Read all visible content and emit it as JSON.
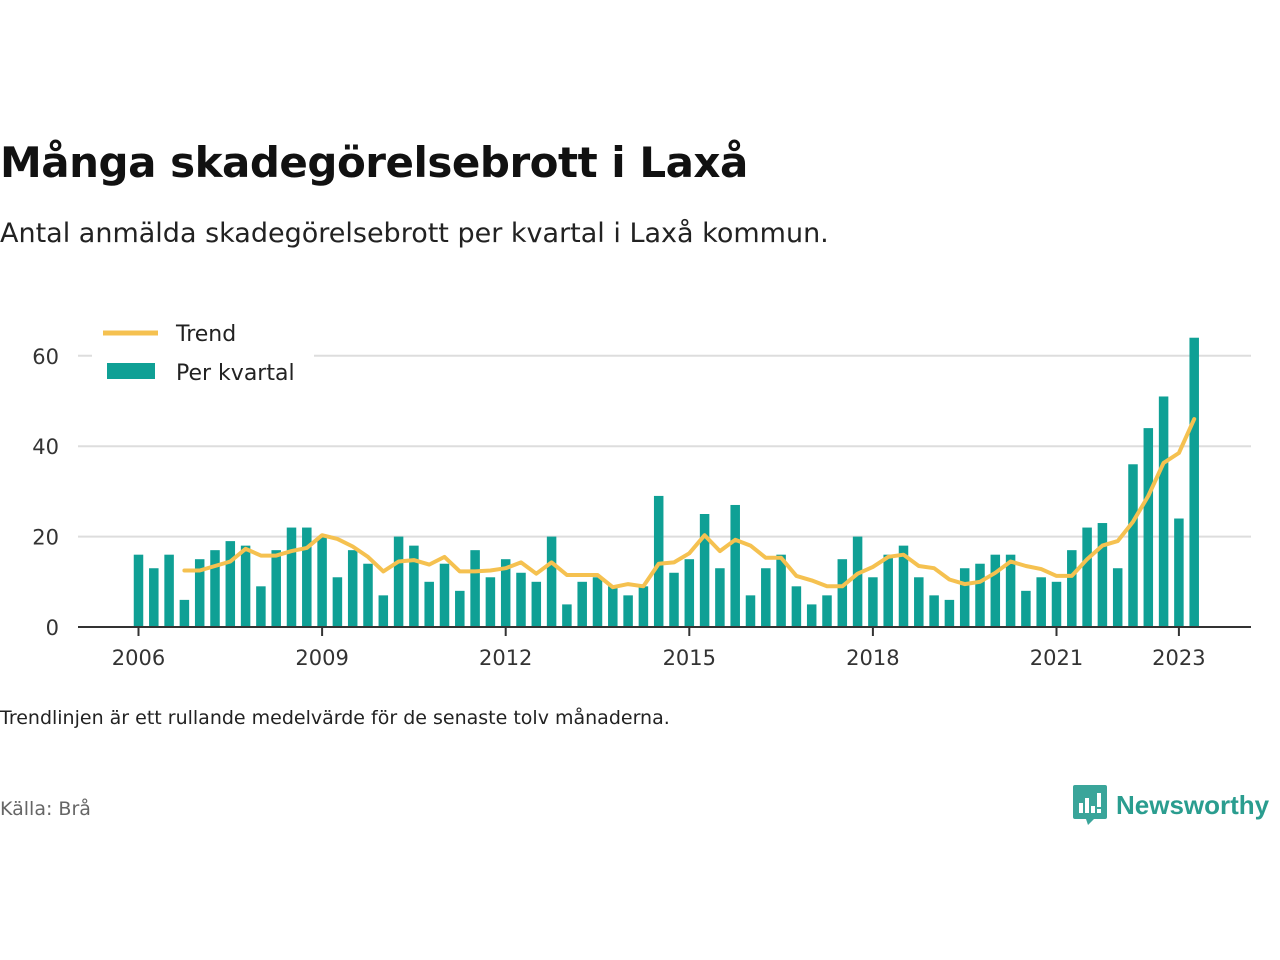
{
  "title": "Många skadegörelsebrott i Laxå",
  "subtitle": "Antal anmälda skadegörelsebrott per kvartal i Laxå kommun.",
  "note": "Trendlinjen är ett rullande medelvärde för de senaste tolv månaderna.",
  "source": "Källa: Brå",
  "brand": {
    "name": "Newsworthy",
    "icon": "newsworthy-logo-icon"
  },
  "colors": {
    "bars": "#0fa095",
    "trend": "#f5c150",
    "grid": "#dddddd",
    "axis": "#333333"
  },
  "chart_data": {
    "type": "bar",
    "xlabel": "",
    "ylabel": "",
    "ylim": [
      0,
      70
    ],
    "yticks": [
      0,
      20,
      40,
      60
    ],
    "xticks": [
      "2006",
      "2009",
      "2012",
      "2015",
      "2018",
      "2021",
      "2023"
    ],
    "legend": {
      "position": "top-left",
      "entries": [
        "Trend",
        "Per kvartal"
      ]
    },
    "grid": true,
    "categories": [
      "2006 Q1",
      "2006 Q2",
      "2006 Q3",
      "2006 Q4",
      "2007 Q1",
      "2007 Q2",
      "2007 Q3",
      "2007 Q4",
      "2008 Q1",
      "2008 Q2",
      "2008 Q3",
      "2008 Q4",
      "2009 Q1",
      "2009 Q2",
      "2009 Q3",
      "2009 Q4",
      "2010 Q1",
      "2010 Q2",
      "2010 Q3",
      "2010 Q4",
      "2011 Q1",
      "2011 Q2",
      "2011 Q3",
      "2011 Q4",
      "2012 Q1",
      "2012 Q2",
      "2012 Q3",
      "2012 Q4",
      "2013 Q1",
      "2013 Q2",
      "2013 Q3",
      "2013 Q4",
      "2014 Q1",
      "2014 Q2",
      "2014 Q3",
      "2014 Q4",
      "2015 Q1",
      "2015 Q2",
      "2015 Q3",
      "2015 Q4",
      "2016 Q1",
      "2016 Q2",
      "2016 Q3",
      "2016 Q4",
      "2017 Q1",
      "2017 Q2",
      "2017 Q3",
      "2017 Q4",
      "2018 Q1",
      "2018 Q2",
      "2018 Q3",
      "2018 Q4",
      "2019 Q1",
      "2019 Q2",
      "2019 Q3",
      "2019 Q4",
      "2020 Q1",
      "2020 Q2",
      "2020 Q3",
      "2020 Q4",
      "2021 Q1",
      "2021 Q2",
      "2021 Q3",
      "2021 Q4",
      "2022 Q1",
      "2022 Q2",
      "2022 Q3",
      "2022 Q4",
      "2023 Q1",
      "2023 Q2"
    ],
    "series": [
      {
        "name": "Per kvartal",
        "type": "bar",
        "values": [
          16,
          13,
          16,
          6,
          15,
          17,
          19,
          18,
          9,
          17,
          22,
          22,
          20,
          11,
          17,
          14,
          7,
          20,
          18,
          10,
          14,
          8,
          17,
          11,
          15,
          12,
          10,
          20,
          5,
          10,
          11,
          9,
          7,
          9,
          29,
          12,
          15,
          25,
          13,
          27,
          7,
          13,
          16,
          9,
          5,
          7,
          15,
          20,
          11,
          16,
          18,
          11,
          7,
          6,
          13,
          14,
          16,
          16,
          8,
          11,
          10,
          17,
          22,
          23,
          13,
          36,
          44,
          51,
          24,
          64
        ]
      },
      {
        "name": "Trend",
        "type": "line",
        "values": [
          null,
          null,
          null,
          12.5,
          12.5,
          13.5,
          14.5,
          17.3,
          15.8,
          15.8,
          16.8,
          17.5,
          20.3,
          19.5,
          17.8,
          15.5,
          12.3,
          14.5,
          14.8,
          13.8,
          15.5,
          12.3,
          12.3,
          12.5,
          13.0,
          14.3,
          11.8,
          14.3,
          11.5,
          11.5,
          11.5,
          8.8,
          9.5,
          9.0,
          14.0,
          14.3,
          16.3,
          20.3,
          16.8,
          19.3,
          18.0,
          15.3,
          15.3,
          11.3,
          10.3,
          9.0,
          9.0,
          11.8,
          13.3,
          15.5,
          16.0,
          13.5,
          13.0,
          10.5,
          9.5,
          10.0,
          12.0,
          14.5,
          13.5,
          12.8,
          11.3,
          11.3,
          15.0,
          18.0,
          19.0,
          23.3,
          29.0,
          36.3,
          38.5,
          46.0
        ]
      }
    ]
  }
}
